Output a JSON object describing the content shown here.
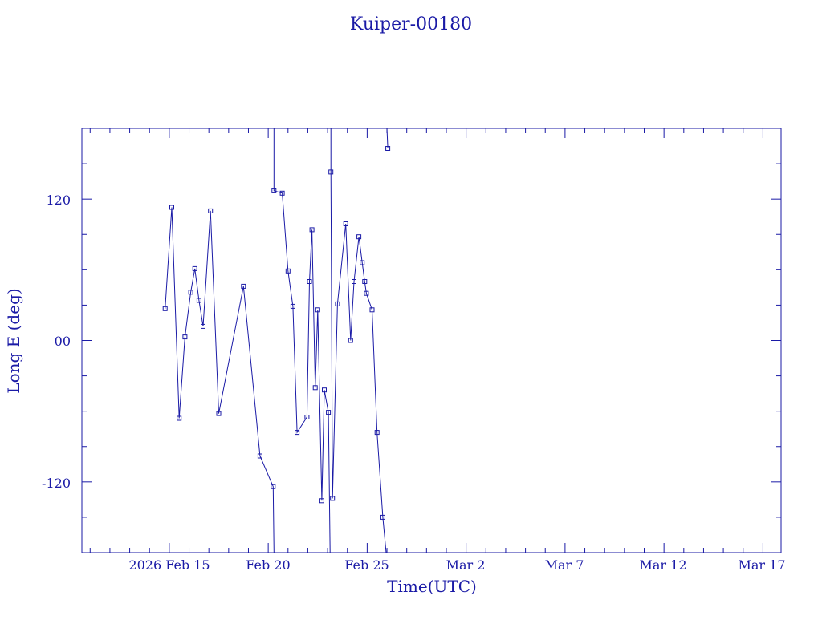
{
  "chart_data": {
    "type": "line",
    "title": "Kuiper-00180",
    "xlabel": "Time(UTC)",
    "ylabel": "Long E (deg)",
    "x_ticks": [
      "2026 Feb 15",
      "Feb 20",
      "Feb 25",
      "Mar  2",
      "Mar  7",
      "Mar 12",
      "Mar 17"
    ],
    "y_ticks": [
      "120",
      "00",
      "-120"
    ],
    "x_range": [
      "2026-02-10T14:00",
      "2026-03-17T22:00"
    ],
    "y_range": [
      -180,
      180
    ],
    "color": "#1a1aa6",
    "series": [
      {
        "marker": "square",
        "points": [
          {
            "x": "2026-02-14T19:00",
            "y": 27
          },
          {
            "x": "2026-02-15T03:00",
            "y": 113
          },
          {
            "x": "2026-02-15T12:00",
            "y": -66
          },
          {
            "x": "2026-02-15T19:00",
            "y": 3
          },
          {
            "x": "2026-02-16T02:00",
            "y": 41
          },
          {
            "x": "2026-02-16T07:00",
            "y": 61
          },
          {
            "x": "2026-02-16T12:00",
            "y": 34
          },
          {
            "x": "2026-02-16T17:00",
            "y": 12
          },
          {
            "x": "2026-02-17T02:00",
            "y": 110
          },
          {
            "x": "2026-02-17T12:00",
            "y": -62
          },
          {
            "x": "2026-02-18T18:00",
            "y": 46
          },
          {
            "x": "2026-02-19T14:00",
            "y": -98
          },
          {
            "x": "2026-02-20T06:00",
            "y": -124
          },
          {
            "x": "2026-02-20T07:00",
            "y": -180
          },
          {
            "x": "2026-02-20T07:00",
            "y": 180
          },
          {
            "x": "2026-02-20T07:00",
            "y": 127
          },
          {
            "x": "2026-02-20T17:00",
            "y": 125
          },
          {
            "x": "2026-02-21T00:00",
            "y": 59
          },
          {
            "x": "2026-02-21T06:00",
            "y": 29
          },
          {
            "x": "2026-02-21T11:00",
            "y": -78
          },
          {
            "x": "2026-02-21T23:00",
            "y": -65
          },
          {
            "x": "2026-02-22T02:00",
            "y": 50
          },
          {
            "x": "2026-02-22T05:00",
            "y": 94
          },
          {
            "x": "2026-02-22T09:00",
            "y": -40
          },
          {
            "x": "2026-02-22T12:00",
            "y": 26
          },
          {
            "x": "2026-02-22T17:00",
            "y": -136
          },
          {
            "x": "2026-02-22T20:00",
            "y": -42
          },
          {
            "x": "2026-02-23T01:00",
            "y": -61
          },
          {
            "x": "2026-02-23T03:00",
            "y": -180
          },
          {
            "x": "2026-02-23T04:00",
            "y": 180
          },
          {
            "x": "2026-02-23T04:00",
            "y": 143
          },
          {
            "x": "2026-02-23T06:00",
            "y": -134
          },
          {
            "x": "2026-02-23T12:00",
            "y": 31
          },
          {
            "x": "2026-02-23T22:00",
            "y": 99
          },
          {
            "x": "2026-02-24T04:00",
            "y": 0
          },
          {
            "x": "2026-02-24T08:00",
            "y": 50
          },
          {
            "x": "2026-02-24T14:00",
            "y": 88
          },
          {
            "x": "2026-02-24T18:00",
            "y": 66
          },
          {
            "x": "2026-02-24T21:00",
            "y": 50
          },
          {
            "x": "2026-02-24T23:00",
            "y": 40
          },
          {
            "x": "2026-02-25T06:00",
            "y": 26
          },
          {
            "x": "2026-02-25T12:00",
            "y": -78
          },
          {
            "x": "2026-02-25T19:00",
            "y": -150
          },
          {
            "x": "2026-02-25T23:00",
            "y": -180
          },
          {
            "x": "2026-02-26T00:00",
            "y": 180
          },
          {
            "x": "2026-02-26T01:00",
            "y": 163
          }
        ]
      }
    ]
  }
}
